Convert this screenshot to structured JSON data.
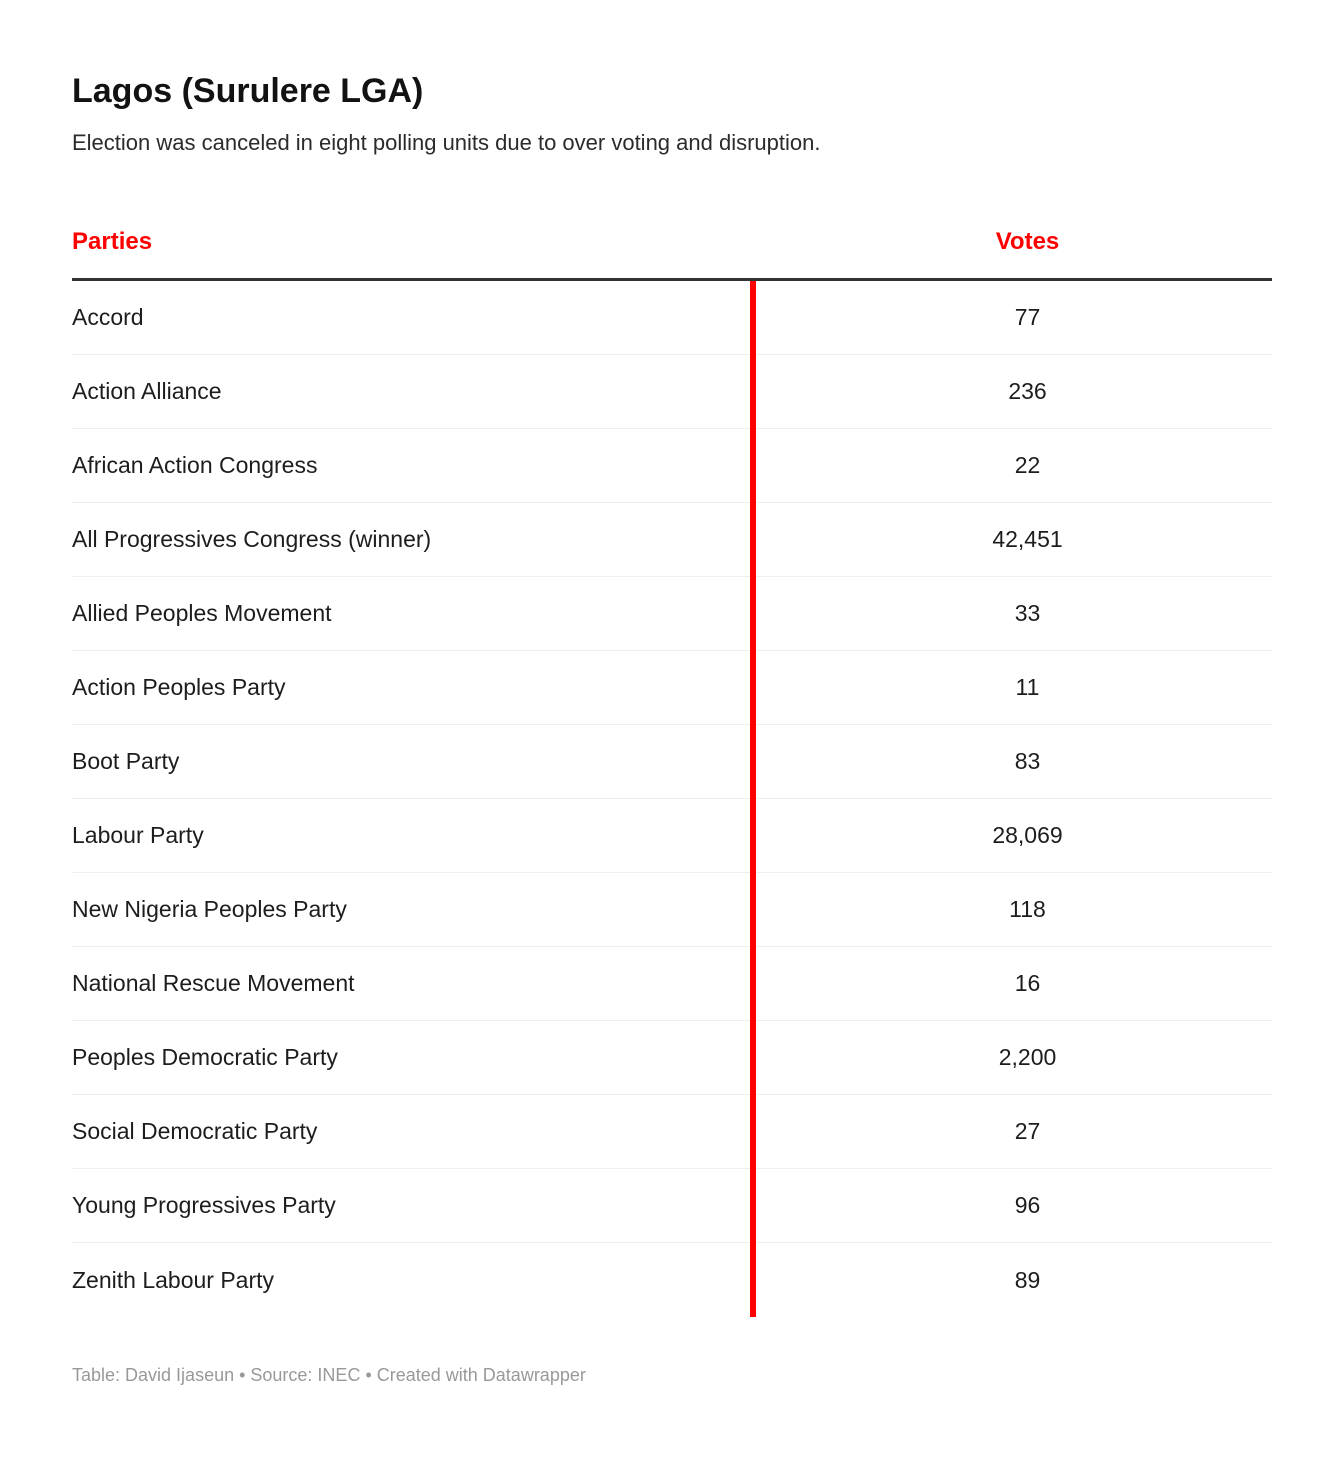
{
  "page": {
    "title": "Lagos (Surulere LGA)",
    "subtitle": "Election was canceled in eight polling units due to over voting and disruption.",
    "footer_credit": "Table: David Ijaseun • Source: INEC • Created with Datawrapper"
  },
  "colors": {
    "accent": "#ff0000",
    "header_rule": "#333333",
    "row_divider": "#eeeeee",
    "footer_text": "#999999"
  },
  "table": {
    "columns": [
      "Parties",
      "Votes"
    ],
    "rows": [
      {
        "party": "Accord",
        "votes": "77"
      },
      {
        "party": "Action Alliance",
        "votes": "236"
      },
      {
        "party": "African Action Congress",
        "votes": "22"
      },
      {
        "party": "All Progressives Congress (winner)",
        "votes": "42,451"
      },
      {
        "party": "Allied Peoples Movement",
        "votes": "33"
      },
      {
        "party": "Action Peoples Party",
        "votes": "11"
      },
      {
        "party": "Boot Party",
        "votes": "83"
      },
      {
        "party": "Labour Party",
        "votes": "28,069"
      },
      {
        "party": "New Nigeria Peoples Party",
        "votes": "118"
      },
      {
        "party": "National Rescue Movement",
        "votes": "16"
      },
      {
        "party": "Peoples Democratic Party",
        "votes": "2,200"
      },
      {
        "party": "Social Democratic Party",
        "votes": "27"
      },
      {
        "party": "Young Progressives Party",
        "votes": "96"
      },
      {
        "party": "Zenith Labour Party",
        "votes": "89"
      }
    ]
  },
  "chart_data": {
    "type": "table",
    "title": "Lagos (Surulere LGA)",
    "subtitle": "Election was canceled in eight polling units due to over voting and disruption.",
    "columns": [
      "Parties",
      "Votes"
    ],
    "categories": [
      "Accord",
      "Action Alliance",
      "African Action Congress",
      "All Progressives Congress (winner)",
      "Allied Peoples Movement",
      "Action Peoples Party",
      "Boot Party",
      "Labour Party",
      "New Nigeria Peoples Party",
      "National Rescue Movement",
      "Peoples Democratic Party",
      "Social Democratic Party",
      "Young Progressives Party",
      "Zenith Labour Party"
    ],
    "values": [
      77,
      236,
      22,
      42451,
      33,
      11,
      83,
      28069,
      118,
      16,
      2200,
      27,
      96,
      89
    ],
    "footer": "Table: David Ijaseun • Source: INEC • Created with Datawrapper"
  }
}
